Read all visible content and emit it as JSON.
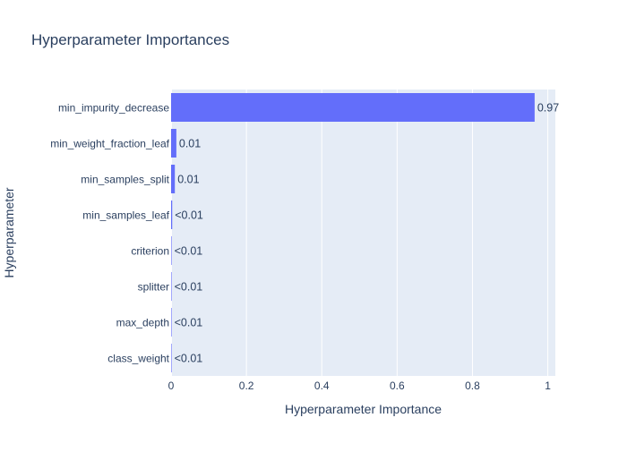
{
  "chart_data": {
    "type": "bar",
    "orientation": "horizontal",
    "title": "Hyperparameter Importances",
    "xlabel": "Hyperparameter Importance",
    "ylabel": "Hyperparameter",
    "xlim": [
      0,
      1.02
    ],
    "x_ticks": [
      0,
      0.2,
      0.4,
      0.6,
      0.8,
      1
    ],
    "x_tick_labels": [
      "0",
      "0.2",
      "0.4",
      "0.6",
      "0.8",
      "1"
    ],
    "grid": true,
    "categories": [
      "min_impurity_decrease",
      "min_weight_fraction_leaf",
      "min_samples_split",
      "min_samples_leaf",
      "criterion",
      "splitter",
      "max_depth",
      "class_weight"
    ],
    "values": [
      0.965,
      0.014,
      0.01,
      0.003,
      0.001,
      0.0005,
      0.0003,
      0.0002
    ],
    "value_labels": [
      "0.97",
      "0.01",
      "0.01",
      "<0.01",
      "<0.01",
      "<0.01",
      "<0.01",
      "<0.01"
    ],
    "colors": {
      "bar": "#636efa",
      "plot_background": "#e5ecf6",
      "grid": "#ffffff",
      "text": "#2a3f5f",
      "page_background": "#ffffff"
    }
  }
}
